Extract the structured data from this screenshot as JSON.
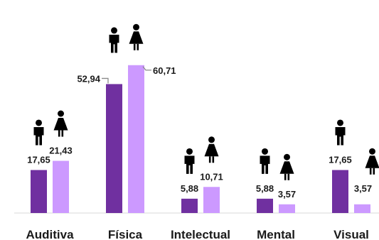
{
  "chart_data": {
    "type": "bar",
    "categories": [
      "Auditiva",
      "Física",
      "Intelectual",
      "Mental",
      "Visual"
    ],
    "series": [
      {
        "icon": "male-icon",
        "values": [
          17.65,
          52.94,
          5.88,
          5.88,
          17.65
        ]
      },
      {
        "icon": "female-icon",
        "values": [
          21.43,
          60.71,
          10.71,
          3.57,
          3.57
        ]
      }
    ],
    "value_labels": [
      [
        "17,65",
        "52,94",
        "5,88",
        "5,88",
        "17,65"
      ],
      [
        "21,43",
        "60,71",
        "10,71",
        "3,57",
        "3,57"
      ]
    ],
    "colors": [
      "#7030a0",
      "#cc99ff"
    ],
    "ylim": [
      0,
      70
    ],
    "grid": false,
    "legend": "none"
  }
}
